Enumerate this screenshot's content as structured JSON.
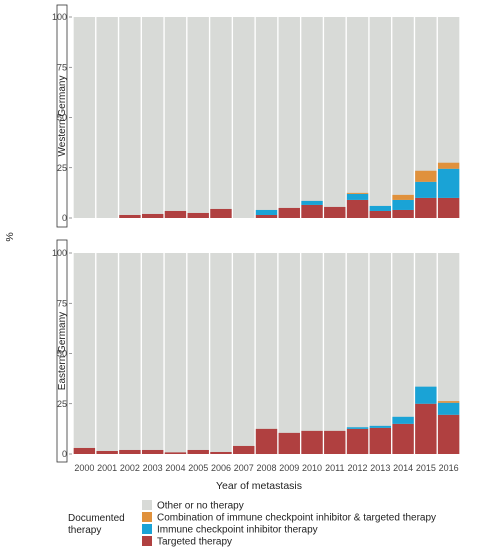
{
  "chart_data": {
    "type": "bar",
    "stacked": true,
    "percent_stacked": true,
    "ylabel": "%",
    "xlabel": "Year of metastasis",
    "ylim": [
      0,
      100
    ],
    "yticks": [
      0,
      25,
      50,
      75,
      100
    ],
    "grid": false,
    "categories": [
      "2000",
      "2001",
      "2002",
      "2003",
      "2004",
      "2005",
      "2006",
      "2007",
      "2008",
      "2009",
      "2010",
      "2011",
      "2012",
      "2013",
      "2014",
      "2015",
      "2016"
    ],
    "legend": {
      "title": "Documented therapy",
      "position": "bottom",
      "entries": [
        {
          "key": "other",
          "label": "Other or no therapy",
          "color": "#d8dad7"
        },
        {
          "key": "combo",
          "label": "Combination of immune checkpoint inhibitor & targeted therapy",
          "color": "#e0913c"
        },
        {
          "key": "ici",
          "label": "Immune checkpoint inhibitor therapy",
          "color": "#1aa3d6"
        },
        {
          "key": "targeted",
          "label": "Targeted therapy",
          "color": "#b04040"
        }
      ]
    },
    "facets": [
      {
        "strip": "Western Germany",
        "series": [
          {
            "key": "targeted",
            "values": [
              0,
              0,
              1.5,
              2,
              3.5,
              2.5,
              4.5,
              0,
              1.5,
              5,
              6.5,
              5.5,
              9,
              3.5,
              4,
              10,
              10
            ]
          },
          {
            "key": "ici",
            "values": [
              0,
              0,
              0,
              0,
              0,
              0,
              0,
              0,
              2.5,
              0,
              2,
              0,
              3,
              2.5,
              5,
              8,
              14.5
            ]
          },
          {
            "key": "combo",
            "values": [
              0,
              0,
              0,
              0,
              0,
              0,
              0,
              0,
              0,
              0,
              0,
              0,
              0.5,
              0,
              2.5,
              5.5,
              3
            ]
          }
        ]
      },
      {
        "strip": "Eastern Germany",
        "series": [
          {
            "key": "targeted",
            "values": [
              3,
              1.5,
              2,
              2,
              0.8,
              2,
              1,
              4,
              12.5,
              10.5,
              11.5,
              11.5,
              12.5,
              13,
              15,
              25,
              19.5
            ]
          },
          {
            "key": "ici",
            "values": [
              0,
              0,
              0,
              0,
              0,
              0,
              0,
              0,
              0,
              0,
              0,
              0,
              0.8,
              1,
              3.5,
              8.5,
              6
            ]
          },
          {
            "key": "combo",
            "values": [
              0,
              0,
              0,
              0,
              0,
              0,
              0,
              0,
              0,
              0,
              0,
              0,
              0,
              0,
              0,
              0,
              0.8
            ]
          }
        ]
      }
    ]
  }
}
